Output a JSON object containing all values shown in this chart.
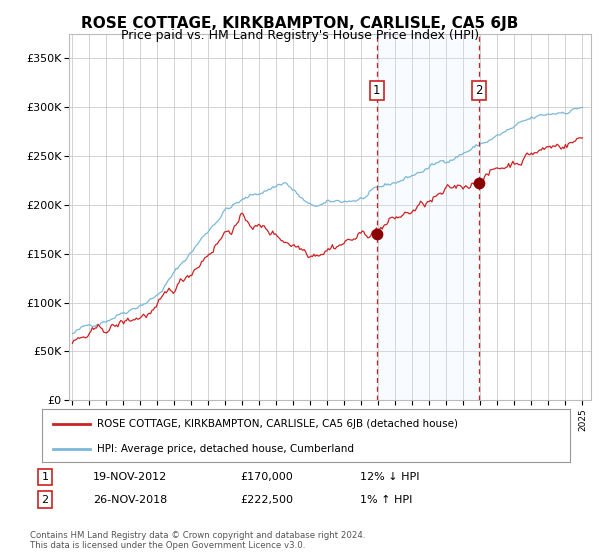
{
  "title": "ROSE COTTAGE, KIRKBAMPTON, CARLISLE, CA5 6JB",
  "subtitle": "Price paid vs. HM Land Registry's House Price Index (HPI)",
  "title_fontsize": 11,
  "subtitle_fontsize": 9,
  "year_start": 1995,
  "year_end": 2025,
  "ylim": [
    0,
    375000
  ],
  "yticks": [
    0,
    50000,
    100000,
    150000,
    200000,
    250000,
    300000,
    350000
  ],
  "ytick_labels": [
    "£0",
    "£50K",
    "£100K",
    "£150K",
    "£200K",
    "£250K",
    "£300K",
    "£350K"
  ],
  "sale1_date": 2012.89,
  "sale1_price": 170000,
  "sale1_label": "1",
  "sale2_date": 2018.9,
  "sale2_price": 222500,
  "sale2_label": "2",
  "hpi_line_color": "#7ab8d9",
  "price_line_color": "#cc2222",
  "dot_color": "#8b0000",
  "vline_color": "#cc2222",
  "shade_color": "#ddeeff",
  "grid_color": "#cccccc",
  "background_color": "#ffffff",
  "legend_line1": "ROSE COTTAGE, KIRKBAMPTON, CARLISLE, CA5 6JB (detached house)",
  "legend_line2": "HPI: Average price, detached house, Cumberland",
  "table_row1": [
    "1",
    "19-NOV-2012",
    "£170,000",
    "12% ↓ HPI"
  ],
  "table_row2": [
    "2",
    "26-NOV-2018",
    "£222,500",
    "1% ↑ HPI"
  ],
  "footer": "Contains HM Land Registry data © Crown copyright and database right 2024.\nThis data is licensed under the Open Government Licence v3.0."
}
